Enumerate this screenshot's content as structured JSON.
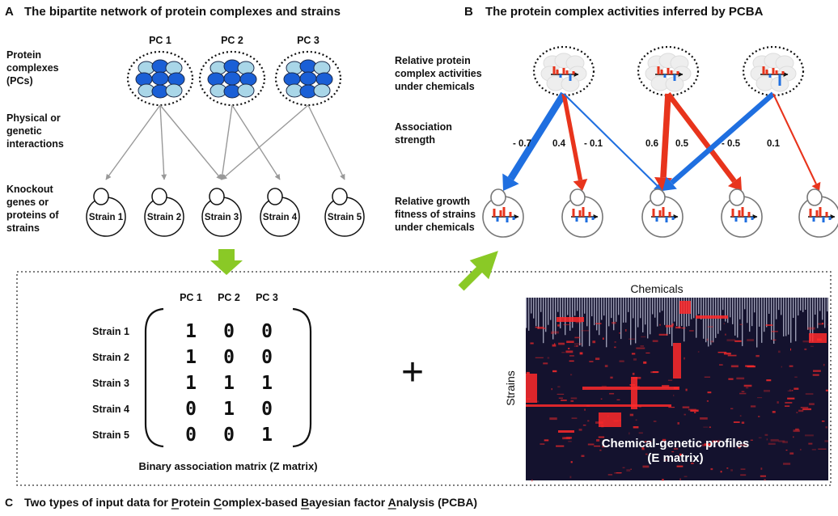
{
  "panelA": {
    "letter": "A",
    "title": "The bipartite network of protein complexes and strains",
    "row_labels": {
      "complexes": [
        "Protein",
        "complexes",
        "(PCs)"
      ],
      "interactions": [
        "Physical or",
        "genetic",
        "interactions"
      ],
      "knockouts": [
        "Knockout",
        "genes or",
        "proteins of",
        "strains"
      ]
    },
    "pcs": [
      "PC 1",
      "PC 2",
      "PC 3"
    ],
    "strains": [
      "Strain 1",
      "Strain 2",
      "Strain 3",
      "Strain 4",
      "Strain 5"
    ],
    "edges": [
      [
        0,
        0
      ],
      [
        0,
        1
      ],
      [
        0,
        2
      ],
      [
        1,
        2
      ],
      [
        1,
        3
      ],
      [
        2,
        2
      ],
      [
        2,
        4
      ]
    ]
  },
  "panelB": {
    "letter": "B",
    "title": "The protein complex activities inferred by PCBA",
    "row_labels": {
      "activities": [
        "Relative protein",
        "complex activities",
        "under chemicals"
      ],
      "strength": [
        "Association",
        "strength"
      ],
      "fitness": [
        "Relative growth",
        "fitness of strains",
        "under chemicals"
      ]
    },
    "weights": [
      "- 0.7",
      "0.4",
      "- 0.1",
      "0.6",
      "0.5",
      "- 0.5",
      "0.1"
    ],
    "edges": [
      {
        "from": 0,
        "to": 0,
        "w": -0.7,
        "color": "#1f6fe0"
      },
      {
        "from": 0,
        "to": 1,
        "w": 0.4,
        "color": "#e8341c"
      },
      {
        "from": 0,
        "to": 2,
        "w": -0.1,
        "color": "#1f6fe0"
      },
      {
        "from": 1,
        "to": 2,
        "w": 0.6,
        "color": "#e8341c"
      },
      {
        "from": 1,
        "to": 3,
        "w": 0.5,
        "color": "#e8341c"
      },
      {
        "from": 2,
        "to": 2,
        "w": -0.5,
        "color": "#1f6fe0"
      },
      {
        "from": 2,
        "to": 4,
        "w": 0.1,
        "color": "#e8341c"
      }
    ]
  },
  "panelC": {
    "letter": "C",
    "caption": "Two types of input data for Protein Complex-based Bayesian factor Analysis (PCBA)",
    "matrix_cols": [
      "PC 1",
      "PC 2",
      "PC 3"
    ],
    "matrix_rows": [
      "Strain 1",
      "Strain 2",
      "Strain 3",
      "Strain 4",
      "Strain 5"
    ],
    "matrix_values": [
      [
        1,
        0,
        0
      ],
      [
        1,
        0,
        0
      ],
      [
        1,
        1,
        1
      ],
      [
        0,
        1,
        0
      ],
      [
        0,
        0,
        1
      ]
    ],
    "matrix_label": "Binary association matrix (Z matrix)",
    "plus": "+",
    "heatmap_top_label": "Chemicals",
    "heatmap_side_label": "Strains",
    "heatmap_label_1": "Chemical-genetic profiles",
    "heatmap_label_2": "(E matrix)"
  },
  "colors": {
    "node_dark": "#1a5fd6",
    "node_light": "#a9d6e8",
    "edge_gray": "#999999",
    "positive": "#e8341c",
    "negative": "#1f6fe0",
    "arrow_green": "#8ac926",
    "heat_bg": "#14122e",
    "heat_hot": "#ff2a2a"
  }
}
